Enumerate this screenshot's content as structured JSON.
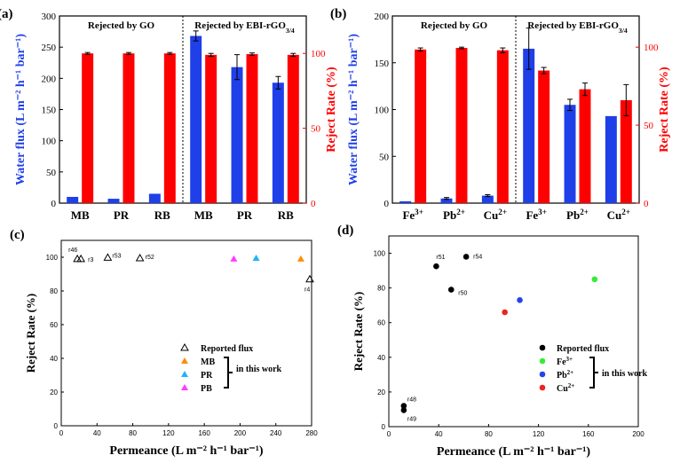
{
  "panels": {
    "a": {
      "label": "(a)",
      "type": "bar",
      "group_labels": [
        "Rejected by GO",
        "Rejected by EBI-rGO"
      ],
      "group_label_sub": "3/4",
      "categories": [
        "MB",
        "PR",
        "RB",
        "MB",
        "PR",
        "RB"
      ],
      "flux": [
        10,
        7,
        15,
        268,
        218,
        193
      ],
      "flux_err": [
        0,
        0,
        0,
        8,
        20,
        10
      ],
      "reject": [
        100,
        100,
        100,
        99,
        99.5,
        99
      ],
      "reject_err": [
        0,
        0,
        0,
        1,
        0.8,
        1
      ],
      "yleft": {
        "label": "Water flux (L m⁻² h⁻¹ bar⁻¹)",
        "min": 0,
        "max": 300,
        "ticks": [
          0,
          50,
          100,
          150,
          200,
          250,
          300
        ]
      },
      "yright": {
        "label": "Reject Rate (%)",
        "min": 0,
        "max": 125,
        "ticks": [
          0,
          50,
          100
        ]
      },
      "colors": {
        "flux": "#1f3fe8",
        "reject": "#ff0000"
      }
    },
    "b": {
      "label": "(b)",
      "type": "bar",
      "group_labels": [
        "Rejected by GO",
        "Rejected by EBI-rGO"
      ],
      "group_label_sub": "3/4",
      "categories": [
        "Fe",
        "Pb",
        "Cu",
        "Fe",
        "Pb",
        "Cu"
      ],
      "category_sup": [
        "3+",
        "2+",
        "2+",
        "3+",
        "2+",
        "2+"
      ],
      "flux": [
        2,
        5,
        8,
        165,
        105,
        93
      ],
      "flux_err": [
        0,
        1,
        1,
        22,
        6,
        0
      ],
      "reject": [
        98.5,
        99.5,
        98,
        85,
        73,
        66
      ],
      "reject_err": [
        1,
        0.5,
        1.5,
        2,
        4,
        10
      ],
      "yleft": {
        "label": "Water flux (L m⁻² h⁻¹ bar⁻¹)",
        "min": 0,
        "max": 200,
        "ticks": [
          0,
          50,
          100,
          150,
          200
        ]
      },
      "yright": {
        "label": "Reject Rate (%)",
        "min": 0,
        "max": 120,
        "ticks": [
          0,
          50,
          100
        ]
      },
      "colors": {
        "flux": "#1f3fe8",
        "reject": "#ff0000"
      }
    },
    "c": {
      "label": "(c)",
      "type": "scatter",
      "xlabel": "Permeance (L m⁻² h⁻¹ bar⁻¹)",
      "ylabel": "Reject Rate (%)",
      "xlim": [
        0,
        280
      ],
      "ylim": [
        0,
        110
      ],
      "xticks": [
        0,
        40,
        80,
        120,
        160,
        200,
        240,
        280
      ],
      "yticks": [
        0,
        20,
        40,
        60,
        80,
        100
      ],
      "reported": [
        {
          "name": "r46",
          "x": 18,
          "y": 99
        },
        {
          "name": "r3",
          "x": 22,
          "y": 99
        },
        {
          "name": "r53",
          "x": 52,
          "y": 99.8
        },
        {
          "name": "r52",
          "x": 88,
          "y": 99.5
        },
        {
          "name": "r4",
          "x": 278,
          "y": 87
        }
      ],
      "this_work": [
        {
          "name": "MB",
          "x": 268,
          "y": 99,
          "color": "#ff8c00"
        },
        {
          "name": "PR",
          "x": 218,
          "y": 99.5,
          "color": "#1eb4ff"
        },
        {
          "name": "PB",
          "x": 193,
          "y": 99,
          "color": "#ff3cff"
        }
      ],
      "legend": {
        "reported": "Reported flux",
        "items": [
          "MB",
          "PR",
          "PB"
        ],
        "bracket": "in this work"
      }
    },
    "d": {
      "label": "(d)",
      "type": "scatter",
      "xlabel": "Permeance (L m⁻² h⁻¹ bar⁻¹)",
      "ylabel": "Reject Rate (%)",
      "xlim": [
        0,
        200
      ],
      "ylim": [
        0,
        110
      ],
      "xticks": [
        0,
        40,
        80,
        120,
        160,
        200
      ],
      "yticks": [
        0,
        20,
        40,
        60,
        80,
        100
      ],
      "reported": [
        {
          "name": "r51",
          "x": 38,
          "y": 92.5
        },
        {
          "name": "r54",
          "x": 62,
          "y": 98
        },
        {
          "name": "r50",
          "x": 50,
          "y": 79
        },
        {
          "name": "r48",
          "x": 12,
          "y": 12
        },
        {
          "name": "r49",
          "x": 12,
          "y": 9.5
        }
      ],
      "this_work": [
        {
          "name": "Fe",
          "sup": "3+",
          "x": 165,
          "y": 85,
          "color": "#33ee33"
        },
        {
          "name": "Pb",
          "sup": "2+",
          "x": 105,
          "y": 73,
          "color": "#2244ee"
        },
        {
          "name": "Cu",
          "sup": "2+",
          "x": 93,
          "y": 66,
          "color": "#ee2222"
        }
      ],
      "legend": {
        "reported": "Reported flux",
        "bracket": "in this work"
      }
    }
  }
}
